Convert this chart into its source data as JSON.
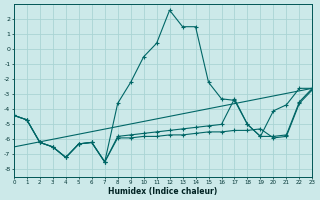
{
  "xlabel": "Humidex (Indice chaleur)",
  "bg_color": "#cce9e9",
  "grid_color": "#aad4d4",
  "line_color": "#006666",
  "xlim": [
    0,
    23
  ],
  "ylim": [
    -8.5,
    3.0
  ],
  "xticks": [
    0,
    1,
    2,
    3,
    4,
    5,
    6,
    7,
    8,
    9,
    10,
    11,
    12,
    13,
    14,
    15,
    16,
    17,
    18,
    19,
    20,
    21,
    22,
    23
  ],
  "yticks": [
    -8,
    -7,
    -6,
    -5,
    -4,
    -3,
    -2,
    -1,
    0,
    1,
    2
  ],
  "series": [
    {
      "x": [
        0,
        1,
        2,
        3,
        4,
        5,
        6,
        7,
        8,
        9,
        10,
        11,
        12,
        13,
        14,
        15,
        16,
        17,
        18,
        19,
        20,
        21,
        22,
        23
      ],
      "y": [
        -4.4,
        -4.7,
        -6.2,
        -6.5,
        -7.2,
        -6.3,
        -6.2,
        -7.5,
        -3.6,
        -2.2,
        -0.5,
        0.4,
        2.6,
        1.5,
        1.5,
        -2.2,
        -3.3,
        -3.4,
        -5.0,
        -5.8,
        -4.1,
        -3.7,
        -2.6,
        -2.6
      ],
      "markers": true
    },
    {
      "x": [
        0,
        1,
        2,
        3,
        4,
        5,
        6,
        7,
        8,
        9,
        10,
        11,
        12,
        13,
        14,
        15,
        16,
        17,
        18,
        19,
        20,
        21,
        22,
        23
      ],
      "y": [
        -4.4,
        -4.7,
        -6.2,
        -6.5,
        -7.2,
        -6.3,
        -6.2,
        -7.5,
        -5.8,
        -5.7,
        -5.6,
        -5.5,
        -5.4,
        -5.3,
        -5.2,
        -5.1,
        -5.0,
        -3.3,
        -5.0,
        -5.8,
        -5.8,
        -5.7,
        -3.5,
        -2.6
      ],
      "markers": true
    },
    {
      "x": [
        0,
        1,
        2,
        3,
        4,
        5,
        6,
        7,
        8,
        9,
        10,
        11,
        12,
        13,
        14,
        15,
        16,
        17,
        18,
        19,
        20,
        21,
        22,
        23
      ],
      "y": [
        -4.4,
        -4.7,
        -6.2,
        -6.5,
        -7.2,
        -6.3,
        -6.2,
        -7.5,
        -5.9,
        -5.9,
        -5.8,
        -5.8,
        -5.7,
        -5.7,
        -5.6,
        -5.5,
        -5.5,
        -5.4,
        -5.4,
        -5.3,
        -5.9,
        -5.8,
        -3.6,
        -2.7
      ],
      "markers": true
    },
    {
      "x": [
        0,
        23
      ],
      "y": [
        -6.5,
        -2.6
      ],
      "markers": false
    }
  ]
}
